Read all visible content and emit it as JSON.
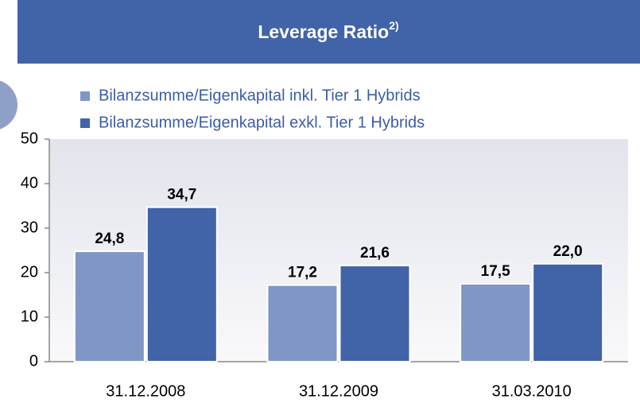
{
  "chart_data": {
    "type": "bar",
    "title": "Leverage Ratio",
    "title_superscript": "2)",
    "categories": [
      "31.12.2008",
      "31.12.2009",
      "31.03.2010"
    ],
    "series": [
      {
        "name": "Bilanzsumme/Eigenkapital inkl. Tier 1 Hybrids",
        "color": "#7f96c6",
        "values": [
          24.8,
          17.2,
          17.5
        ],
        "value_labels": [
          "24,8",
          "17,2",
          "17,5"
        ]
      },
      {
        "name": "Bilanzsumme/Eigenkapital exkl. Tier 1 Hybrids",
        "color": "#4163a8",
        "values": [
          34.7,
          21.6,
          22.0
        ],
        "value_labels": [
          "34,7",
          "21,6",
          "22,0"
        ]
      }
    ],
    "ylim": [
      0,
      50
    ],
    "yticks": [
      0,
      10,
      20,
      30,
      40,
      50
    ],
    "legend": "top"
  }
}
